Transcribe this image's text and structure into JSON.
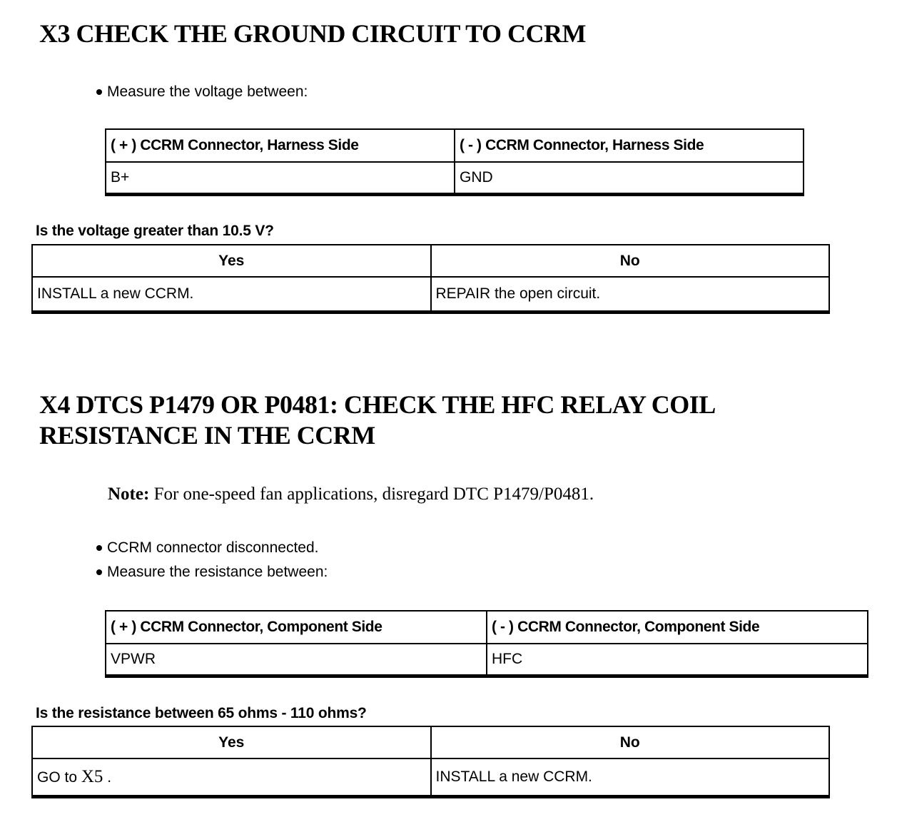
{
  "page": {
    "background": "#ffffff",
    "text_color": "#000000",
    "border_color": "#000000"
  },
  "sections": [
    {
      "id": "X3",
      "heading_lines": [
        "X3 CHECK THE GROUND CIRCUIT TO CCRM"
      ],
      "bullets": [
        "Measure the voltage between:"
      ],
      "measure_table": {
        "headers": [
          "( + ) CCRM Connector, Harness Side",
          "( - ) CCRM Connector, Harness Side"
        ],
        "row": [
          "B+",
          "GND"
        ]
      },
      "question": "Is the voltage greater than 10.5 V?",
      "decision_table": {
        "headers": [
          "Yes",
          "No"
        ],
        "row": [
          "INSTALL a new CCRM.",
          "REPAIR the open circuit."
        ]
      }
    },
    {
      "id": "X4",
      "heading_lines": [
        "X4 DTCS P1479 OR P0481: CHECK THE HFC RELAY COIL",
        "RESISTANCE IN THE CCRM"
      ],
      "note_label": "Note:",
      "note_text": " For one-speed fan applications, disregard DTC P1479/P0481.",
      "bullets": [
        "CCRM connector disconnected.",
        "Measure the resistance between:"
      ],
      "measure_table": {
        "headers": [
          "( + ) CCRM Connector, Component Side",
          "( - ) CCRM Connector, Component Side"
        ],
        "row": [
          "VPWR",
          "HFC"
        ]
      },
      "question": "Is the resistance between 65 ohms - 110 ohms?",
      "decision_table": {
        "headers": [
          "Yes",
          "No"
        ],
        "yes_parts": {
          "prefix": "GO to ",
          "ref": "X5",
          "suffix": " ."
        },
        "no": "INSTALL a new CCRM."
      }
    }
  ]
}
